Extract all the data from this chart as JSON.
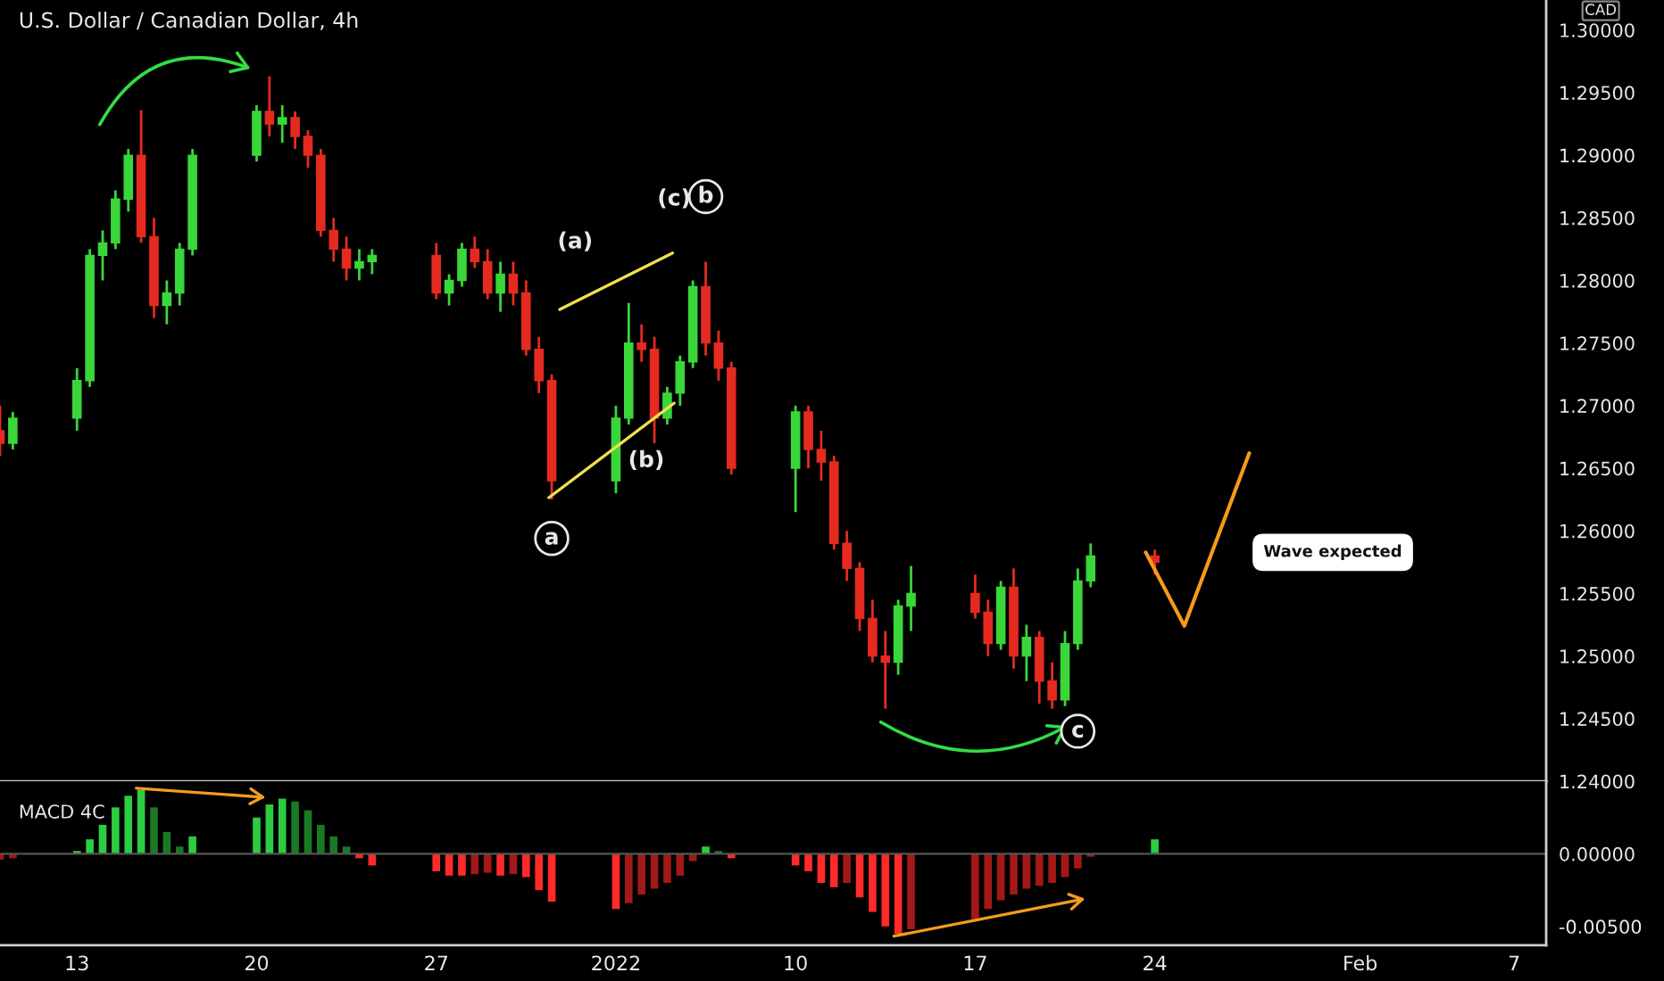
{
  "chart_data": [
    {
      "type": "candlestick",
      "title": "U.S. Dollar / Canadian Dollar, 4h",
      "x": [
        "2021-12-10T00:00",
        "2021-12-10T12:00",
        "2021-12-13T00:00",
        "2021-12-13T12:00",
        "2021-12-14T00:00",
        "2021-12-14T12:00",
        "2021-12-15T00:00",
        "2021-12-15T12:00",
        "2021-12-16T00:00",
        "2021-12-16T12:00",
        "2021-12-17T00:00",
        "2021-12-17T12:00",
        "2021-12-20T00:00",
        "2021-12-20T12:00",
        "2021-12-21T00:00",
        "2021-12-21T12:00",
        "2021-12-22T00:00",
        "2021-12-22T12:00",
        "2021-12-23T00:00",
        "2021-12-23T12:00",
        "2021-12-24T00:00",
        "2021-12-24T12:00",
        "2021-12-27T00:00",
        "2021-12-27T12:00",
        "2021-12-28T00:00",
        "2021-12-28T12:00",
        "2021-12-29T00:00",
        "2021-12-29T12:00",
        "2021-12-30T00:00",
        "2021-12-30T12:00",
        "2021-12-31T00:00",
        "2021-12-31T12:00",
        "2022-01-03T00:00",
        "2022-01-03T12:00",
        "2022-01-04T00:00",
        "2022-01-04T12:00",
        "2022-01-05T00:00",
        "2022-01-05T12:00",
        "2022-01-06T00:00",
        "2022-01-06T12:00",
        "2022-01-07T00:00",
        "2022-01-07T12:00",
        "2022-01-10T00:00",
        "2022-01-10T12:00",
        "2022-01-11T00:00",
        "2022-01-11T12:00",
        "2022-01-12T00:00",
        "2022-01-12T12:00",
        "2022-01-13T00:00",
        "2022-01-13T12:00",
        "2022-01-14T00:00",
        "2022-01-14T12:00",
        "2022-01-17T00:00",
        "2022-01-17T12:00",
        "2022-01-18T00:00",
        "2022-01-18T12:00",
        "2022-01-19T00:00",
        "2022-01-19T12:00",
        "2022-01-20T00:00",
        "2022-01-20T12:00",
        "2022-01-21T00:00",
        "2022-01-21T12:00",
        "2022-01-24T00:00"
      ],
      "ohlc": [
        [
          1.268,
          1.27,
          1.266,
          1.267
        ],
        [
          1.267,
          1.2695,
          1.2665,
          1.269
        ],
        [
          1.269,
          1.273,
          1.268,
          1.272
        ],
        [
          1.272,
          1.2825,
          1.2715,
          1.282
        ],
        [
          1.282,
          1.284,
          1.28,
          1.283
        ],
        [
          1.283,
          1.2872,
          1.2825,
          1.2865
        ],
        [
          1.2865,
          1.2905,
          1.2855,
          1.29
        ],
        [
          1.29,
          1.2936,
          1.283,
          1.2835
        ],
        [
          1.2835,
          1.285,
          1.277,
          1.278
        ],
        [
          1.278,
          1.28,
          1.2765,
          1.279
        ],
        [
          1.279,
          1.283,
          1.278,
          1.2825
        ],
        [
          1.2825,
          1.2905,
          1.282,
          1.29
        ],
        [
          1.29,
          1.294,
          1.2895,
          1.2935
        ],
        [
          1.2935,
          1.2963,
          1.2915,
          1.2925
        ],
        [
          1.2925,
          1.294,
          1.291,
          1.293
        ],
        [
          1.293,
          1.2935,
          1.2905,
          1.2915
        ],
        [
          1.2915,
          1.292,
          1.289,
          1.29
        ],
        [
          1.29,
          1.2905,
          1.2835,
          1.284
        ],
        [
          1.284,
          1.285,
          1.2815,
          1.2825
        ],
        [
          1.2825,
          1.2835,
          1.28,
          1.281
        ],
        [
          1.281,
          1.2825,
          1.28,
          1.2815
        ],
        [
          1.2815,
          1.2825,
          1.2805,
          1.282
        ],
        [
          1.282,
          1.283,
          1.2785,
          1.279
        ],
        [
          1.279,
          1.2805,
          1.278,
          1.28
        ],
        [
          1.28,
          1.283,
          1.2795,
          1.2825
        ],
        [
          1.2825,
          1.2835,
          1.281,
          1.2815
        ],
        [
          1.2815,
          1.2825,
          1.2785,
          1.279
        ],
        [
          1.279,
          1.2815,
          1.2775,
          1.2805
        ],
        [
          1.2805,
          1.2815,
          1.278,
          1.279
        ],
        [
          1.279,
          1.28,
          1.274,
          1.2745
        ],
        [
          1.2745,
          1.2755,
          1.271,
          1.272
        ],
        [
          1.272,
          1.2725,
          1.2625,
          1.264
        ],
        [
          1.264,
          1.27,
          1.263,
          1.269
        ],
        [
          1.269,
          1.2782,
          1.2685,
          1.275
        ],
        [
          1.275,
          1.2765,
          1.2735,
          1.2745
        ],
        [
          1.2745,
          1.2755,
          1.267,
          1.269
        ],
        [
          1.269,
          1.2715,
          1.2685,
          1.271
        ],
        [
          1.271,
          1.274,
          1.27,
          1.2735
        ],
        [
          1.2735,
          1.28,
          1.273,
          1.2795
        ],
        [
          1.2795,
          1.2815,
          1.274,
          1.275
        ],
        [
          1.275,
          1.276,
          1.272,
          1.273
        ],
        [
          1.273,
          1.2735,
          1.2645,
          1.265
        ],
        [
          1.265,
          1.27,
          1.2615,
          1.2695
        ],
        [
          1.2695,
          1.27,
          1.265,
          1.2665
        ],
        [
          1.2665,
          1.268,
          1.264,
          1.2655
        ],
        [
          1.2655,
          1.266,
          1.2585,
          1.259
        ],
        [
          1.259,
          1.26,
          1.256,
          1.257
        ],
        [
          1.257,
          1.2575,
          1.252,
          1.253
        ],
        [
          1.253,
          1.2545,
          1.2495,
          1.25
        ],
        [
          1.25,
          1.252,
          1.2458,
          1.2495
        ],
        [
          1.2495,
          1.2545,
          1.2485,
          1.254
        ],
        [
          1.254,
          1.2572,
          1.252,
          1.255
        ],
        [
          1.255,
          1.2565,
          1.253,
          1.2535
        ],
        [
          1.2535,
          1.2545,
          1.25,
          1.251
        ],
        [
          1.251,
          1.256,
          1.2505,
          1.2555
        ],
        [
          1.2555,
          1.257,
          1.249,
          1.25
        ],
        [
          1.25,
          1.2525,
          1.248,
          1.2515
        ],
        [
          1.2515,
          1.252,
          1.2462,
          1.248
        ],
        [
          1.248,
          1.2495,
          1.2458,
          1.2465
        ],
        [
          1.2465,
          1.252,
          1.246,
          1.251
        ],
        [
          1.251,
          1.257,
          1.2505,
          1.256
        ],
        [
          1.256,
          1.259,
          1.2555,
          1.258
        ],
        [
          1.258,
          1.2585,
          1.2565,
          1.2575
        ]
      ],
      "colors": [
        "#e52b20",
        "#3ad63a",
        "#3ad63a",
        "#3ad63a",
        "#3ad63a",
        "#3ad63a",
        "#3ad63a",
        "#e52b20",
        "#e52b20",
        "#3ad63a",
        "#3ad63a",
        "#3ad63a",
        "#3ad63a",
        "#e52b20",
        "#3ad63a",
        "#e52b20",
        "#e52b20",
        "#e52b20",
        "#e52b20",
        "#e52b20",
        "#3ad63a",
        "#3ad63a",
        "#e52b20",
        "#3ad63a",
        "#3ad63a",
        "#e52b20",
        "#e52b20",
        "#3ad63a",
        "#e52b20",
        "#e52b20",
        "#e52b20",
        "#e52b20",
        "#3ad63a",
        "#3ad63a",
        "#e52b20",
        "#e52b20",
        "#3ad63a",
        "#3ad63a",
        "#3ad63a",
        "#e52b20",
        "#e52b20",
        "#e52b20",
        "#3ad63a",
        "#e52b20",
        "#e52b20",
        "#e52b20",
        "#e52b20",
        "#e52b20",
        "#e52b20",
        "#e52b20",
        "#3ad63a",
        "#3ad63a",
        "#e52b20",
        "#e52b20",
        "#3ad63a",
        "#e52b20",
        "#3ad63a",
        "#e52b20",
        "#e52b20",
        "#3ad63a",
        "#3ad63a",
        "#3ad63a",
        "#e52b20"
      ],
      "xlim": [
        "2021-12-10T00:00",
        "2022-02-08T06:00"
      ],
      "ylim": [
        1.24,
        1.3024
      ],
      "yticks": [
        {
          "value": 1.24,
          "label": "1.24000"
        },
        {
          "value": 1.245,
          "label": "1.24500"
        },
        {
          "value": 1.25,
          "label": "1.25000"
        },
        {
          "value": 1.255,
          "label": "1.25500"
        },
        {
          "value": 1.26,
          "label": "1.26000"
        },
        {
          "value": 1.265,
          "label": "1.26500"
        },
        {
          "value": 1.27,
          "label": "1.27000"
        },
        {
          "value": 1.275,
          "label": "1.27500"
        },
        {
          "value": 1.28,
          "label": "1.28000"
        },
        {
          "value": 1.285,
          "label": "1.28500"
        },
        {
          "value": 1.29,
          "label": "1.29000"
        },
        {
          "value": 1.295,
          "label": "1.29500"
        },
        {
          "value": 1.3,
          "label": "1.30000"
        }
      ],
      "tick_labels": "y",
      "annotations": [
        {
          "text": "a",
          "x": "2021-12-31T12:00",
          "y": 1.2594
        },
        {
          "text": "b",
          "x": "2022-01-06T12:00",
          "y": 1.2867
        },
        {
          "text": "c",
          "x": "2022-01-21T00:00",
          "y": 1.244
        },
        "(a)",
        "(b)",
        "(c)",
        "Wave expected",
        "CAD"
      ]
    },
    {
      "type": "bar",
      "x": [
        "2021-12-10T00:00",
        "2021-12-10T12:00",
        "2021-12-13T00:00",
        "2021-12-13T12:00",
        "2021-12-14T00:00",
        "2021-12-14T12:00",
        "2021-12-15T00:00",
        "2021-12-15T12:00",
        "2021-12-16T00:00",
        "2021-12-16T12:00",
        "2021-12-17T00:00",
        "2021-12-17T12:00",
        "2021-12-20T00:00",
        "2021-12-20T12:00",
        "2021-12-21T00:00",
        "2021-12-21T12:00",
        "2021-12-22T00:00",
        "2021-12-22T12:00",
        "2021-12-23T00:00",
        "2021-12-23T12:00",
        "2021-12-24T00:00",
        "2021-12-24T12:00",
        "2021-12-27T00:00",
        "2021-12-27T12:00",
        "2021-12-28T00:00",
        "2021-12-28T12:00",
        "2021-12-29T00:00",
        "2021-12-29T12:00",
        "2021-12-30T00:00",
        "2021-12-30T12:00",
        "2021-12-31T00:00",
        "2021-12-31T12:00",
        "2022-01-03T00:00",
        "2022-01-03T12:00",
        "2022-01-04T00:00",
        "2022-01-04T12:00",
        "2022-01-05T00:00",
        "2022-01-05T12:00",
        "2022-01-06T00:00",
        "2022-01-06T12:00",
        "2022-01-07T00:00",
        "2022-01-07T12:00",
        "2022-01-10T00:00",
        "2022-01-10T12:00",
        "2022-01-11T00:00",
        "2022-01-11T12:00",
        "2022-01-12T00:00",
        "2022-01-12T12:00",
        "2022-01-13T00:00",
        "2022-01-13T12:00",
        "2022-01-14T00:00",
        "2022-01-14T12:00",
        "2022-01-17T00:00",
        "2022-01-17T12:00",
        "2022-01-18T00:00",
        "2022-01-18T12:00",
        "2022-01-19T00:00",
        "2022-01-19T12:00",
        "2022-01-20T00:00",
        "2022-01-20T12:00",
        "2022-01-21T00:00",
        "2022-01-21T12:00",
        "2022-01-24T00:00"
      ],
      "values": [
        -0.0004,
        -0.0003,
        0.0002,
        0.001,
        0.002,
        0.0032,
        0.004,
        0.0044,
        0.0032,
        0.0015,
        0.0005,
        0.0012,
        0.0025,
        0.0034,
        0.0038,
        0.0036,
        0.003,
        0.002,
        0.0012,
        0.0005,
        -0.0003,
        -0.0008,
        -0.0012,
        -0.0015,
        -0.0015,
        -0.0014,
        -0.0013,
        -0.0015,
        -0.0014,
        -0.0016,
        -0.0025,
        -0.0033,
        -0.0038,
        -0.0034,
        -0.0028,
        -0.0024,
        -0.002,
        -0.0015,
        -0.0005,
        0.0005,
        0.0002,
        -0.0003,
        -0.0008,
        -0.0012,
        -0.002,
        -0.0023,
        -0.002,
        -0.003,
        -0.004,
        -0.005,
        -0.0055,
        -0.0052,
        -0.0045,
        -0.0038,
        -0.0032,
        -0.0028,
        -0.0024,
        -0.0022,
        -0.002,
        -0.0016,
        -0.001,
        -0.0002,
        0.001
      ],
      "colors": [
        "#a31818",
        "#a31818",
        "#2ecc40",
        "#2ecc40",
        "#2ecc40",
        "#2ecc40",
        "#2ecc40",
        "#2ecc40",
        "#1a7a24",
        "#1a7a24",
        "#1a7a24",
        "#2ecc40",
        "#2ecc40",
        "#2ecc40",
        "#2ecc40",
        "#1a7a24",
        "#1a7a24",
        "#1a7a24",
        "#1a7a24",
        "#1a7a24",
        "#ff2a2a",
        "#ff2a2a",
        "#ff2a2a",
        "#ff2a2a",
        "#ff2a2a",
        "#a31818",
        "#a31818",
        "#ff2a2a",
        "#a31818",
        "#ff2a2a",
        "#ff2a2a",
        "#ff2a2a",
        "#ff2a2a",
        "#a31818",
        "#a31818",
        "#a31818",
        "#a31818",
        "#a31818",
        "#a31818",
        "#2ecc40",
        "#1a7a24",
        "#ff2a2a",
        "#ff2a2a",
        "#ff2a2a",
        "#ff2a2a",
        "#ff2a2a",
        "#a31818",
        "#ff2a2a",
        "#ff2a2a",
        "#ff2a2a",
        "#ff2a2a",
        "#a31818",
        "#a31818",
        "#a31818",
        "#a31818",
        "#a31818",
        "#a31818",
        "#a31818",
        "#a31818",
        "#a31818",
        "#a31818",
        "#a31818",
        "#2ecc40"
      ],
      "xlim": [
        "2021-12-10T00:00",
        "2022-02-08T06:00"
      ],
      "xticks": [
        {
          "value": "2021-12-13",
          "label": "13"
        },
        {
          "value": "2021-12-20",
          "label": "20"
        },
        {
          "value": "2021-12-27",
          "label": "27"
        },
        {
          "value": "2022-01-03",
          "label": "2022"
        },
        {
          "value": "2022-01-10",
          "label": "10"
        },
        {
          "value": "2022-01-17",
          "label": "17"
        },
        {
          "value": "2022-01-24",
          "label": "24"
        },
        {
          "value": "2022-02-01",
          "label": "Feb"
        },
        {
          "value": "2022-02-07",
          "label": "7"
        }
      ],
      "ylim": [
        -0.0063,
        0.005
      ],
      "yticks": [
        {
          "value": 0.0,
          "label": "0.00000"
        },
        {
          "value": -0.005,
          "label": "-0.00500"
        }
      ],
      "annotations": [
        "MACD 4C"
      ]
    }
  ]
}
